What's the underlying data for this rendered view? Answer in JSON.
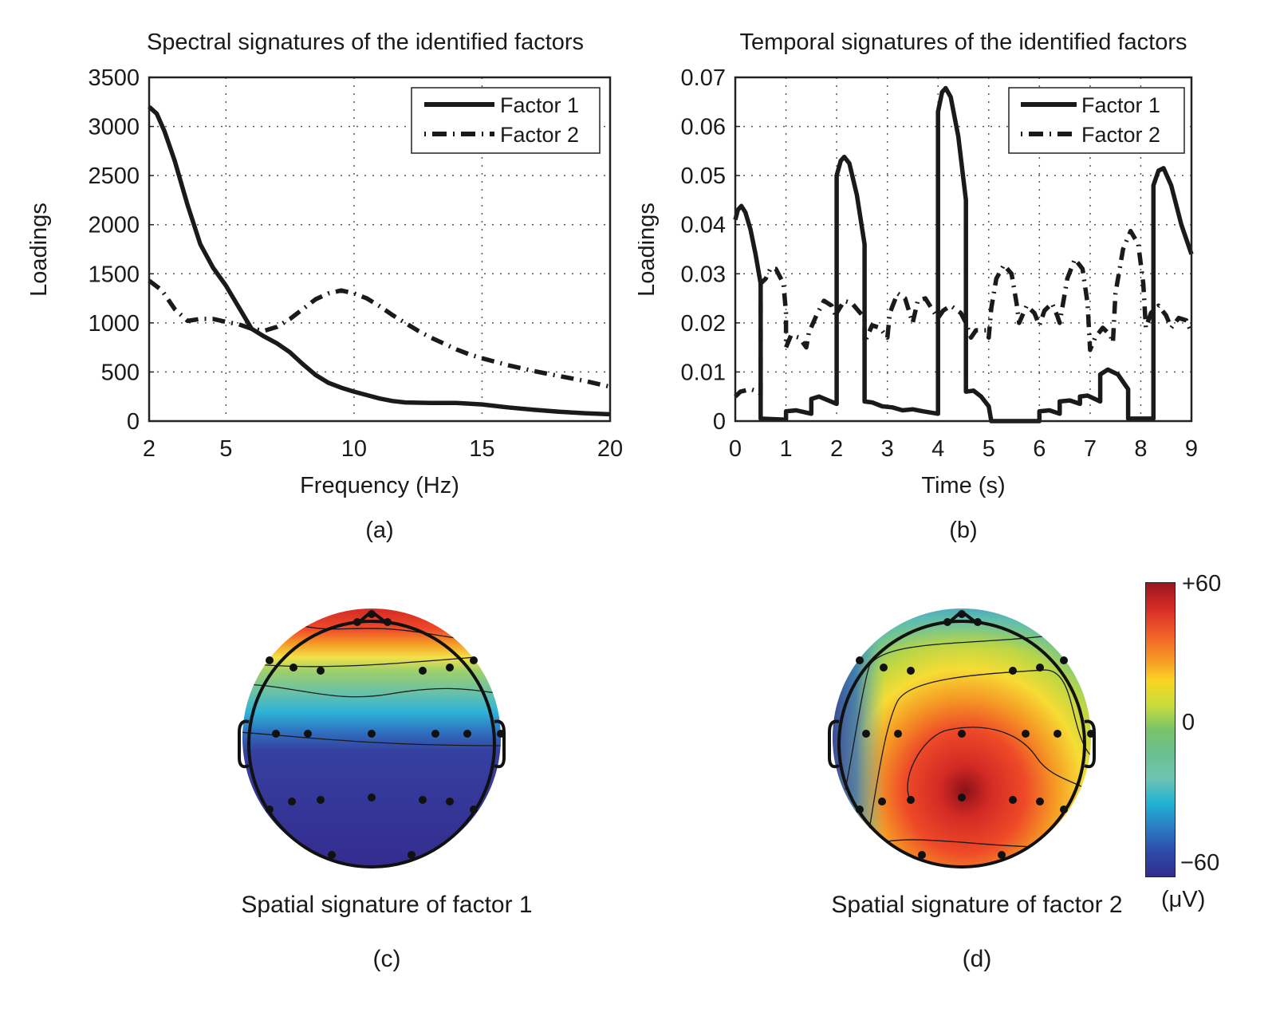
{
  "chart_data": [
    {
      "id": "a",
      "type": "line",
      "title": "Spectral signatures of the identified factors",
      "xlabel": "Frequency (Hz)",
      "ylabel": "Loadings",
      "xlim": [
        2,
        20
      ],
      "ylim": [
        0,
        3500
      ],
      "xticks": [
        2,
        5,
        10,
        15,
        20
      ],
      "yticks": [
        0,
        500,
        1000,
        1500,
        2000,
        2500,
        3000,
        3500
      ],
      "grid": true,
      "legend_position": "top-right",
      "panel_label": "(a)",
      "series": [
        {
          "name": "Factor 1",
          "style": "solid",
          "points": [
            [
              2,
              3200
            ],
            [
              2.3,
              3130
            ],
            [
              2.6,
              2950
            ],
            [
              3,
              2650
            ],
            [
              3.5,
              2200
            ],
            [
              4,
              1800
            ],
            [
              4.5,
              1560
            ],
            [
              5,
              1380
            ],
            [
              5.5,
              1160
            ],
            [
              6,
              940
            ],
            [
              6.5,
              860
            ],
            [
              7,
              790
            ],
            [
              7.5,
              700
            ],
            [
              8,
              580
            ],
            [
              8.5,
              470
            ],
            [
              9,
              390
            ],
            [
              9.5,
              340
            ],
            [
              10,
              300
            ],
            [
              10.5,
              265
            ],
            [
              11,
              230
            ],
            [
              11.5,
              205
            ],
            [
              12,
              190
            ],
            [
              13,
              185
            ],
            [
              14,
              185
            ],
            [
              15,
              170
            ],
            [
              16,
              140
            ],
            [
              17,
              115
            ],
            [
              18,
              95
            ],
            [
              19,
              80
            ],
            [
              20,
              70
            ]
          ]
        },
        {
          "name": "Factor 2",
          "style": "dashdot",
          "points": [
            [
              2,
              1430
            ],
            [
              2.5,
              1330
            ],
            [
              3,
              1140
            ],
            [
              3.5,
              1020
            ],
            [
              4,
              1040
            ],
            [
              4.5,
              1040
            ],
            [
              5,
              1010
            ],
            [
              5.5,
              985
            ],
            [
              6,
              940
            ],
            [
              6.5,
              920
            ],
            [
              7,
              960
            ],
            [
              7.5,
              1040
            ],
            [
              8,
              1140
            ],
            [
              8.5,
              1240
            ],
            [
              9,
              1300
            ],
            [
              9.5,
              1330
            ],
            [
              10,
              1300
            ],
            [
              10.5,
              1250
            ],
            [
              11,
              1170
            ],
            [
              11.5,
              1080
            ],
            [
              12,
              1000
            ],
            [
              12.5,
              920
            ],
            [
              13,
              850
            ],
            [
              13.5,
              790
            ],
            [
              14,
              730
            ],
            [
              14.5,
              680
            ],
            [
              15,
              640
            ],
            [
              16,
              570
            ],
            [
              17,
              510
            ],
            [
              18,
              460
            ],
            [
              19,
              410
            ],
            [
              20,
              350
            ]
          ]
        }
      ]
    },
    {
      "id": "b",
      "type": "line",
      "title": "Temporal signatures of the identified factors",
      "xlabel": "Time (s)",
      "ylabel": "Loadings",
      "xlim": [
        0,
        9
      ],
      "ylim": [
        0,
        0.07
      ],
      "xticks": [
        0,
        1,
        2,
        3,
        4,
        5,
        6,
        7,
        8,
        9
      ],
      "yticks": [
        0,
        0.01,
        0.02,
        0.03,
        0.04,
        0.05,
        0.06,
        0.07
      ],
      "grid": true,
      "legend_position": "top-right",
      "panel_label": "(b)",
      "series": [
        {
          "name": "Factor 1",
          "style": "solid",
          "points": [
            [
              0,
              0.041
            ],
            [
              0.05,
              0.043
            ],
            [
              0.12,
              0.0438
            ],
            [
              0.2,
              0.0425
            ],
            [
              0.3,
              0.039
            ],
            [
              0.4,
              0.034
            ],
            [
              0.5,
              0.028
            ],
            [
              0.5,
              0.0005
            ],
            [
              1.0,
              0.0003
            ],
            [
              1.0,
              0.002
            ],
            [
              1.2,
              0.0022
            ],
            [
              1.5,
              0.0015
            ],
            [
              1.5,
              0.0045
            ],
            [
              1.65,
              0.005
            ],
            [
              2.0,
              0.0035
            ],
            [
              2.0,
              0.05
            ],
            [
              2.08,
              0.053
            ],
            [
              2.15,
              0.0538
            ],
            [
              2.25,
              0.0525
            ],
            [
              2.4,
              0.046
            ],
            [
              2.55,
              0.036
            ],
            [
              2.55,
              0.004
            ],
            [
              2.7,
              0.0038
            ],
            [
              2.9,
              0.003
            ],
            [
              3.1,
              0.0028
            ],
            [
              3.3,
              0.0022
            ],
            [
              3.5,
              0.0024
            ],
            [
              3.7,
              0.002
            ],
            [
              4.0,
              0.0015
            ],
            [
              4.0,
              0.063
            ],
            [
              4.08,
              0.067
            ],
            [
              4.15,
              0.0678
            ],
            [
              4.25,
              0.066
            ],
            [
              4.4,
              0.058
            ],
            [
              4.55,
              0.045
            ],
            [
              4.55,
              0.006
            ],
            [
              4.7,
              0.0062
            ],
            [
              4.85,
              0.005
            ],
            [
              5.0,
              0.003
            ],
            [
              5.05,
              0
            ],
            [
              6.0,
              0
            ],
            [
              6.0,
              0.002
            ],
            [
              6.2,
              0.0022
            ],
            [
              6.4,
              0.0015
            ],
            [
              6.4,
              0.004
            ],
            [
              6.6,
              0.0042
            ],
            [
              6.8,
              0.0035
            ],
            [
              6.8,
              0.005
            ],
            [
              6.95,
              0.0052
            ],
            [
              7.2,
              0.004
            ],
            [
              7.2,
              0.0095
            ],
            [
              7.35,
              0.0105
            ],
            [
              7.55,
              0.0095
            ],
            [
              7.75,
              0.0065
            ],
            [
              7.75,
              0.0005
            ],
            [
              8.25,
              0.0005
            ],
            [
              8.25,
              0.048
            ],
            [
              8.35,
              0.051
            ],
            [
              8.45,
              0.0515
            ],
            [
              8.6,
              0.048
            ],
            [
              8.8,
              0.04
            ],
            [
              9.0,
              0.034
            ]
          ]
        },
        {
          "name": "Factor 2",
          "style": "dashdot",
          "points": [
            [
              0,
              0.005
            ],
            [
              0.1,
              0.006
            ],
            [
              0.3,
              0.0065
            ],
            [
              0.45,
              0.006
            ],
            [
              0.5,
              0.0055
            ],
            [
              0.5,
              0.028
            ],
            [
              0.6,
              0.029
            ],
            [
              0.7,
              0.0312
            ],
            [
              0.8,
              0.031
            ],
            [
              0.95,
              0.028
            ],
            [
              1.0,
              0.022
            ],
            [
              1.0,
              0.015
            ],
            [
              1.1,
              0.0175
            ],
            [
              1.25,
              0.017
            ],
            [
              1.3,
              0.0165
            ],
            [
              1.4,
              0.015
            ],
            [
              1.45,
              0.018
            ],
            [
              1.6,
              0.0215
            ],
            [
              1.75,
              0.0245
            ],
            [
              1.9,
              0.0235
            ],
            [
              2.0,
              0.021
            ],
            [
              2.0,
              0.022
            ],
            [
              2.15,
              0.0245
            ],
            [
              2.3,
              0.024
            ],
            [
              2.55,
              0.021
            ],
            [
              2.55,
              0.016
            ],
            [
              2.7,
              0.0195
            ],
            [
              2.85,
              0.019
            ],
            [
              3.0,
              0.017
            ],
            [
              3.05,
              0.022
            ],
            [
              3.2,
              0.026
            ],
            [
              3.35,
              0.025
            ],
            [
              3.5,
              0.02
            ],
            [
              3.6,
              0.0245
            ],
            [
              3.75,
              0.025
            ],
            [
              3.9,
              0.0225
            ],
            [
              4.0,
              0.021
            ],
            [
              4.1,
              0.0225
            ],
            [
              4.25,
              0.0235
            ],
            [
              4.45,
              0.022
            ],
            [
              4.55,
              0.02
            ],
            [
              4.65,
              0.017
            ],
            [
              4.75,
              0.0185
            ],
            [
              4.95,
              0.0185
            ],
            [
              5.0,
              0.017
            ],
            [
              5.05,
              0.023
            ],
            [
              5.15,
              0.029
            ],
            [
              5.3,
              0.0318
            ],
            [
              5.45,
              0.03
            ],
            [
              5.55,
              0.024
            ],
            [
              5.6,
              0.02
            ],
            [
              5.75,
              0.0235
            ],
            [
              5.9,
              0.022
            ],
            [
              6.0,
              0.0195
            ],
            [
              6.1,
              0.0225
            ],
            [
              6.25,
              0.024
            ],
            [
              6.35,
              0.0215
            ],
            [
              6.4,
              0.02
            ],
            [
              6.55,
              0.029
            ],
            [
              6.7,
              0.033
            ],
            [
              6.85,
              0.031
            ],
            [
              6.95,
              0.024
            ],
            [
              7.0,
              0.0145
            ],
            [
              7.1,
              0.017
            ],
            [
              7.25,
              0.019
            ],
            [
              7.4,
              0.0175
            ],
            [
              7.45,
              0.016
            ],
            [
              7.5,
              0.026
            ],
            [
              7.65,
              0.035
            ],
            [
              7.8,
              0.0387
            ],
            [
              7.95,
              0.036
            ],
            [
              8.05,
              0.028
            ],
            [
              8.1,
              0.019
            ],
            [
              8.2,
              0.022
            ],
            [
              8.35,
              0.0235
            ],
            [
              8.5,
              0.0215
            ],
            [
              8.6,
              0.019
            ],
            [
              8.75,
              0.021
            ],
            [
              8.9,
              0.0205
            ],
            [
              9.0,
              0.018
            ]
          ]
        }
      ]
    },
    {
      "id": "c",
      "type": "heatmap",
      "subtype": "scalp-topography",
      "title": "Spatial signature of factor 1",
      "panel_label": "(c)",
      "description": "Frontal positive (red) at top, transitioning through yellow/green to strong negative (dark blue) over central and posterior regions",
      "contours": 4,
      "electrodes": 22
    },
    {
      "id": "d",
      "type": "heatmap",
      "subtype": "scalp-topography",
      "title": "Spatial signature of factor 2",
      "panel_label": "(d)",
      "description": "Central-parietal positive maximum (dark red) surrounded by yellow, negative (blue) at left temporal edge and frontal edge",
      "contours": 5,
      "electrodes": 22
    }
  ],
  "colorbar": {
    "max_label": "+60",
    "mid_label": "0",
    "min_label": "−60",
    "unit": "(μV)",
    "range": [
      -60,
      60
    ],
    "stops": [
      "#9b1620",
      "#d42a25",
      "#ef5a2a",
      "#f59025",
      "#f9d523",
      "#c8dc3c",
      "#79c36a",
      "#6cbf92",
      "#6ec4b2",
      "#20b3d5",
      "#2a7cc3",
      "#2e4aa8",
      "#332e8f"
    ]
  },
  "legend": {
    "factor1": "Factor 1",
    "factor2": "Factor 2"
  }
}
